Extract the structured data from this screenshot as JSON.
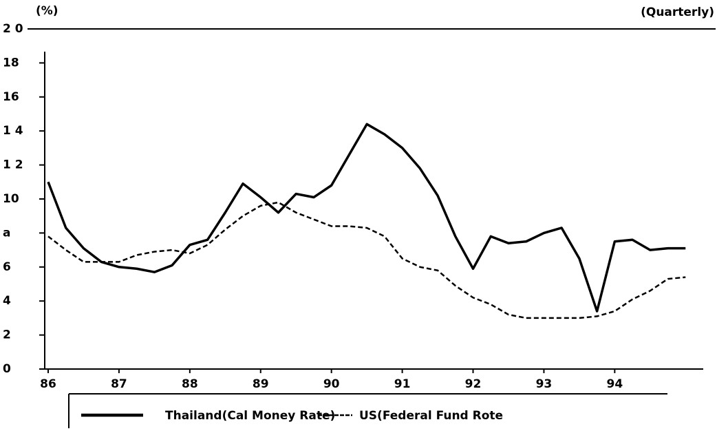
{
  "chart_data": {
    "type": "line",
    "unit_label": "(%)",
    "frequency_label": "(Quarterly)",
    "x": [
      86,
      86.25,
      86.5,
      86.75,
      87,
      87.25,
      87.5,
      87.75,
      88,
      88.25,
      88.5,
      88.75,
      89,
      89.25,
      89.5,
      89.75,
      90,
      90.25,
      90.5,
      90.75,
      91,
      91.25,
      91.5,
      91.75,
      92,
      92.25,
      92.5,
      92.75,
      93,
      93.25,
      93.5,
      93.75,
      94,
      94.25,
      94.5,
      94.75,
      95
    ],
    "series": [
      {
        "name": "Thailand(Cal Money Rate)",
        "color": "#000000",
        "line_style": "solid",
        "values": [
          11.0,
          8.3,
          7.1,
          6.3,
          6.0,
          5.9,
          5.7,
          6.1,
          7.3,
          7.6,
          9.2,
          10.9,
          10.1,
          9.2,
          10.3,
          10.1,
          10.8,
          12.6,
          14.4,
          13.8,
          13.0,
          11.8,
          10.2,
          7.8,
          5.9,
          7.8,
          7.4,
          7.5,
          8.0,
          8.3,
          6.5,
          3.4,
          7.5,
          7.6,
          7.0,
          7.1,
          7.1
        ]
      },
      {
        "name": "US(Federal Fund Rote",
        "color": "#000000",
        "line_style": "dashed",
        "values": [
          7.8,
          7.0,
          6.3,
          6.3,
          6.3,
          6.7,
          6.9,
          7.0,
          6.8,
          7.3,
          8.2,
          9.0,
          9.6,
          9.8,
          9.2,
          8.8,
          8.4,
          8.4,
          8.3,
          7.8,
          6.5,
          6.0,
          5.8,
          4.9,
          4.2,
          3.8,
          3.2,
          3.0,
          3.0,
          3.0,
          3.0,
          3.1,
          3.4,
          4.1,
          4.6,
          5.3,
          5.4
        ]
      }
    ],
    "xlim": [
      86,
      95.25
    ],
    "xticks": [
      86,
      87,
      88,
      89,
      90,
      91,
      92,
      93,
      94
    ],
    "ylim": [
      0,
      20
    ],
    "yticks": [
      0,
      2,
      4,
      6,
      {
        "value": 8,
        "label": "a"
      },
      10,
      {
        "value": 12,
        "label": "1 2"
      },
      {
        "value": 14,
        "label": "1 4"
      },
      16,
      18,
      {
        "value": 20,
        "label": "2 0"
      }
    ]
  }
}
